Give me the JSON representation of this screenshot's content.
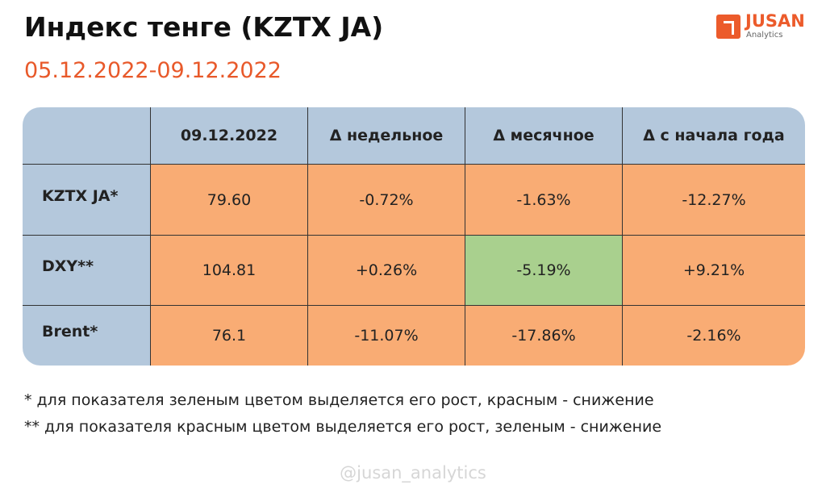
{
  "header": {
    "title": "Индекс тенге (KZTX JA)",
    "subtitle": "05.12.2022-09.12.2022",
    "logo": {
      "name": "JUSAN",
      "tagline": "Analytics"
    }
  },
  "table": {
    "columns": [
      "09.12.2022",
      "Δ недельное",
      "Δ месячное",
      "Δ с начала года"
    ],
    "header_color": "#b4c8dc",
    "rows": [
      {
        "label": "KZTX JA*",
        "cells": [
          "79.60",
          "-0.72%",
          "-1.63%",
          "-12.27%"
        ],
        "colors": [
          "#f9ac74",
          "#f9ac74",
          "#f9ac74",
          "#f9ac74"
        ]
      },
      {
        "label": "DXY**",
        "cells": [
          "104.81",
          "+0.26%",
          "-5.19%",
          "+9.21%"
        ],
        "colors": [
          "#f9ac74",
          "#f9ac74",
          "#a9d08e",
          "#f9ac74"
        ]
      },
      {
        "label": "Brent*",
        "cells": [
          "76.1",
          "-11.07%",
          "-17.86%",
          "-2.16%"
        ],
        "colors": [
          "#f9ac74",
          "#f9ac74",
          "#f9ac74",
          "#f9ac74"
        ]
      }
    ]
  },
  "footnotes": [
    "* для показателя зеленым цветом выделяется его рост, красным - снижение",
    "** для показателя красным цветом выделяется его рост, зеленым - снижение"
  ],
  "watermark": "@jusan_analytics"
}
